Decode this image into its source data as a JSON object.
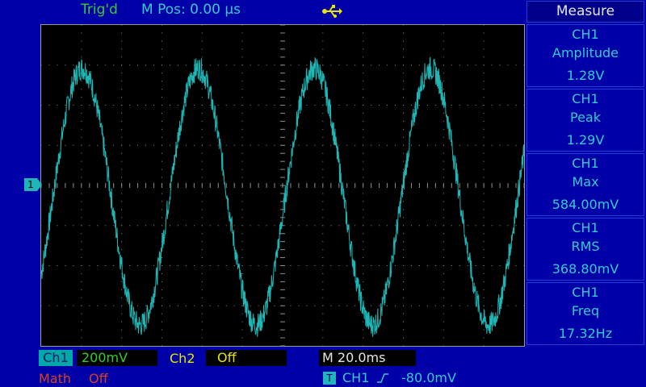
{
  "status": {
    "trigger_state": "Trig'd",
    "horizontal_position": "M Pos: 0.00 µs",
    "usb_icon": "usb-icon"
  },
  "measure": {
    "title": "Measure",
    "items": [
      {
        "channel": "CH1",
        "name": "Amplitude",
        "value": "1.28V"
      },
      {
        "channel": "CH1",
        "name": "Peak",
        "value": "1.29V"
      },
      {
        "channel": "CH1",
        "name": "Max",
        "value": "584.00mV"
      },
      {
        "channel": "CH1",
        "name": "RMS",
        "value": "368.80mV"
      },
      {
        "channel": "CH1",
        "name": "Freq",
        "value": "17.32Hz"
      }
    ]
  },
  "bottom": {
    "ch1_label": "Ch1",
    "ch1_scale": "200mV",
    "ch2_label": "Ch2",
    "ch2_state": "Off",
    "timebase": "M 20.0ms",
    "math_label": "Math",
    "math_state": "Off",
    "trigger_badge": "T",
    "trigger_source": "CH1",
    "trigger_level": "-80.0mV"
  },
  "markers": {
    "ch1_ground": "1"
  },
  "colors": {
    "background": "#0000a8",
    "trace": "#1fb6b6",
    "grid": "#8c8c8c"
  },
  "chart_data": {
    "type": "line",
    "x_divisions": 12,
    "y_divisions": 8,
    "series": [
      {
        "name": "CH1",
        "waveform": "sine",
        "frequency_hz": 17.32,
        "max_v": 0.584,
        "amplitude_v": 1.28,
        "volts_per_div": 0.2,
        "time_per_div_s": 0.02,
        "noise_peak_v": 0.06
      }
    ]
  }
}
